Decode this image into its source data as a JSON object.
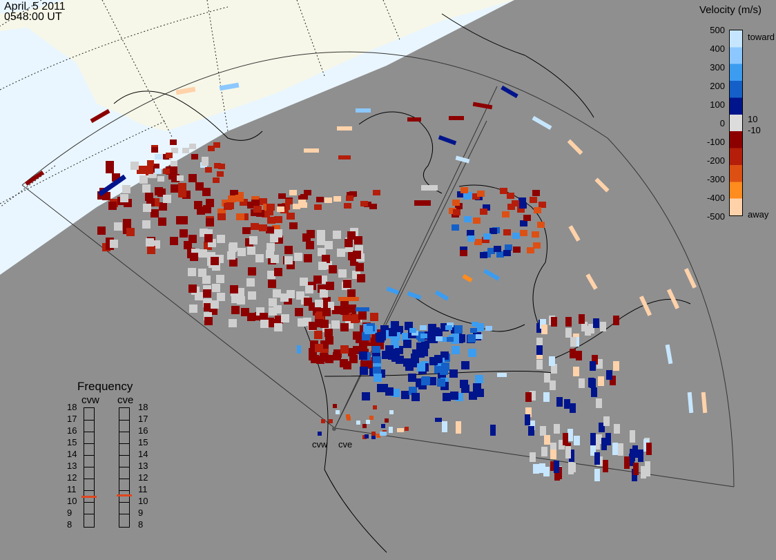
{
  "header": {
    "date": "April, 5 2011",
    "time": "0548:00 UT"
  },
  "velocity_legend": {
    "title": "Velocity (m/s)",
    "toward_label": "toward",
    "away_label": "away",
    "ticks": [
      "500",
      "400",
      "300",
      "200",
      "100",
      "0",
      "-100",
      "-200",
      "-300",
      "-400",
      "-500"
    ],
    "inner_ticks": [
      "10",
      "-10"
    ],
    "colors": [
      "#c6e6ff",
      "#8cc8ff",
      "#3c9cf0",
      "#1460c8",
      "#00148c",
      "#dcdcdc",
      "#8c0000",
      "#b41e0a",
      "#dc5014",
      "#ff8c1e",
      "#ffd2aa"
    ]
  },
  "frequency_legend": {
    "title": "Frequency",
    "radars": [
      "cvw",
      "cve"
    ],
    "ticks": [
      "18",
      "17",
      "16",
      "15",
      "14",
      "13",
      "12",
      "11",
      "10",
      "9",
      "8"
    ],
    "selected": {
      "cvw": 10.5,
      "cve": 10.6
    }
  },
  "radar_sites": [
    "cvw",
    "cve"
  ],
  "map_colors": {
    "land": "#8f8f8f",
    "daylight": "#e9f6ff",
    "daylight_land": "#f7f7e6",
    "ground_scatter": "#cfcfcf"
  }
}
